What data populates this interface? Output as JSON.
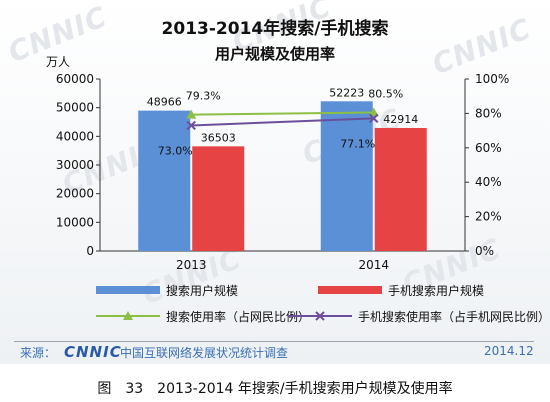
{
  "title_line1": "2013-2014年搜索/手机搜索",
  "title_line2": "用户规模及使用率",
  "unit_label": "万人",
  "colors": {
    "search_users": "#5b8fd6",
    "mobile_users": "#e64444",
    "search_rate": "#8dbf45",
    "mobile_rate": "#6b4f9c"
  },
  "chart_data": {
    "type": "bar",
    "categories": [
      "2013",
      "2014"
    ],
    "series": [
      {
        "name": "搜索用户规模",
        "type": "bar",
        "axis": "left",
        "values": [
          48966,
          52223
        ],
        "labels": [
          "48966",
          "52223"
        ]
      },
      {
        "name": "手机搜索用户规模",
        "type": "bar",
        "axis": "left",
        "values": [
          36503,
          42914
        ],
        "labels": [
          "36503",
          "42914"
        ]
      },
      {
        "name": "搜索使用率（占网民比例）",
        "type": "line",
        "axis": "right",
        "marker": "triangle",
        "values": [
          79.3,
          80.5
        ],
        "labels": [
          "79.3%",
          "80.5%"
        ]
      },
      {
        "name": "手机搜索使用率（占手机网民比例）",
        "type": "line",
        "axis": "right",
        "marker": "x",
        "values": [
          73.0,
          77.1
        ],
        "labels": [
          "73.0%",
          "77.1%"
        ]
      }
    ],
    "y_left": {
      "min": 0,
      "max": 60000,
      "ticks": [
        "0",
        "10000",
        "20000",
        "30000",
        "40000",
        "50000",
        "60000"
      ]
    },
    "y_right": {
      "min": 0,
      "max": 100,
      "ticks": [
        "0%",
        "20%",
        "40%",
        "60%",
        "80%",
        "100%"
      ]
    },
    "grid": false,
    "legend_placement": "bottom"
  },
  "footer": {
    "source_label": "来源：",
    "logo_text": "CNNIC",
    "source_name": "中国互联网络发展状况统计调查",
    "date": "2014.12"
  },
  "caption": "图　33　2013-2014 年搜索/手机搜索用户规模及使用率",
  "watermark_text": "CNNIC"
}
